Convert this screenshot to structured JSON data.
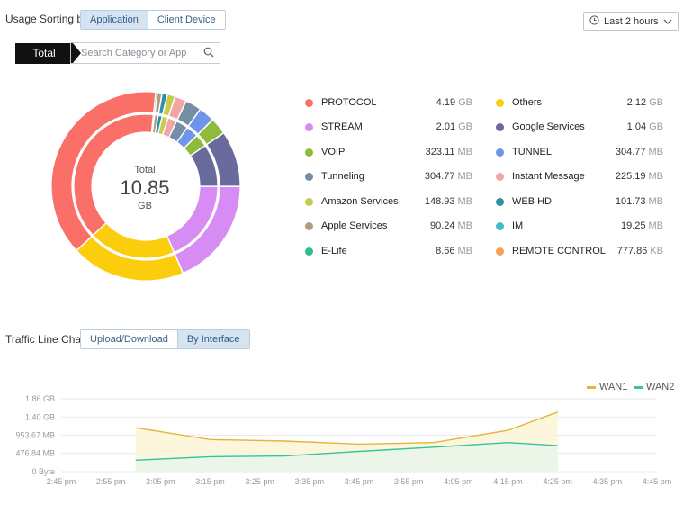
{
  "header": {
    "sort_label": "Usage Sorting by",
    "sort_options": [
      "Application",
      "Client Device"
    ],
    "time_range": "Last 2 hours"
  },
  "filter": {
    "total_tab": "Total",
    "search_placeholder": "Search Category or App"
  },
  "donut": {
    "center_title": "Total",
    "center_value": "10.85",
    "center_unit": "GB"
  },
  "legend": [
    {
      "name": "PROTOCOL",
      "value": "4.19",
      "unit": "GB",
      "color": "#fa6f67"
    },
    {
      "name": "Others",
      "value": "2.12",
      "unit": "GB",
      "color": "#fccd0d"
    },
    {
      "name": "STREAM",
      "value": "2.01",
      "unit": "GB",
      "color": "#d68cf2"
    },
    {
      "name": "Google Services",
      "value": "1.04",
      "unit": "GB",
      "color": "#6a6b9d"
    },
    {
      "name": "VOIP",
      "value": "323.11",
      "unit": "MB",
      "color": "#8fbb3b"
    },
    {
      "name": "TUNNEL",
      "value": "304.77",
      "unit": "MB",
      "color": "#6e95e9"
    },
    {
      "name": "Tunneling",
      "value": "304.77",
      "unit": "MB",
      "color": "#768da6"
    },
    {
      "name": "Instant Message",
      "value": "225.19",
      "unit": "MB",
      "color": "#f4a4a2"
    },
    {
      "name": "Amazon Services",
      "value": "148.93",
      "unit": "MB",
      "color": "#c6cc4e"
    },
    {
      "name": "WEB HD",
      "value": "101.73",
      "unit": "MB",
      "color": "#2e8fa6"
    },
    {
      "name": "Apple Services",
      "value": "90.24",
      "unit": "MB",
      "color": "#b49a7c"
    },
    {
      "name": "IM",
      "value": "19.25",
      "unit": "MB",
      "color": "#3fbcc4"
    },
    {
      "name": "E-Life",
      "value": "8.66",
      "unit": "MB",
      "color": "#2fbe8f"
    },
    {
      "name": "REMOTE CONTROL",
      "value": "777.86",
      "unit": "KB",
      "color": "#f6a058"
    }
  ],
  "traffic": {
    "label": "Traffic Line Chart",
    "options": [
      "Upload/Download",
      "By Interface"
    ]
  },
  "chart_data": {
    "type": "line",
    "x": [
      "2:45 pm",
      "2:55 pm",
      "3:05 pm",
      "3:15 pm",
      "3:25 pm",
      "3:35 pm",
      "3:45 pm",
      "3:55 pm",
      "4:05 pm",
      "4:15 pm",
      "4:25 pm",
      "4:35 pm",
      "4:45 pm"
    ],
    "y_ticks": [
      "0 Byte",
      "476.84 MB",
      "953.67 MB",
      "1.40 GB",
      "1.86 GB"
    ],
    "ylim_mb": [
      0,
      1907.35
    ],
    "series": [
      {
        "name": "WAN1",
        "color": "#e6b43c",
        "x_minutes": [
          20,
          40,
          60,
          80,
          100,
          120,
          140
        ],
        "values_mb": [
          1150,
          840,
          800,
          720,
          760,
          1080,
          1560
        ]
      },
      {
        "name": "WAN2",
        "color": "#33c49c",
        "x_minutes": [
          20,
          40,
          60,
          80,
          100,
          120,
          140
        ],
        "values_mb": [
          300,
          390,
          410,
          530,
          640,
          760,
          680
        ]
      }
    ],
    "grid": true,
    "legend_position": "top-right"
  }
}
